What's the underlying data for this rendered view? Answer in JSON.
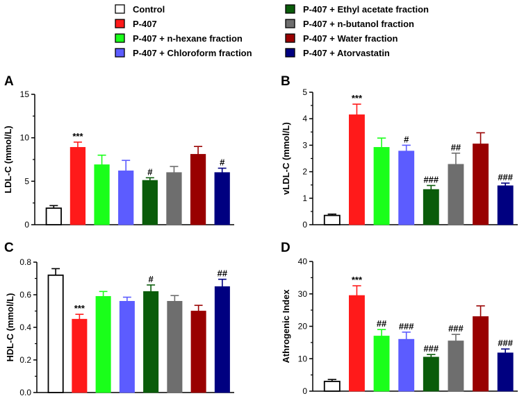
{
  "legend": {
    "items": [
      {
        "label": "Control",
        "color": "#ffffff"
      },
      {
        "label": "P-407",
        "color": "#ff1a1a"
      },
      {
        "label": "P-407 + n-hexane fraction",
        "color": "#1aff1a"
      },
      {
        "label": "P-407 + Chloroform fraction",
        "color": "#5c5cff"
      },
      {
        "label": "P-407 + Ethyl acetate fraction",
        "color": "#0a5c0a"
      },
      {
        "label": "P-407 + n-butanol fraction",
        "color": "#6e6e6e"
      },
      {
        "label": "P-407 + Water fraction",
        "color": "#990000"
      },
      {
        "label": "P-407 + Atorvastatin",
        "color": "#000080"
      }
    ]
  },
  "chart_data": [
    {
      "type": "bar",
      "panel_label": "A",
      "ylabel": "LDL-C (mmol/L)",
      "ylim": [
        0,
        15
      ],
      "yticks": [
        "0",
        "5",
        "10",
        "15"
      ],
      "categories": [
        "Control",
        "P-407",
        "P-407 + n-hexane fraction",
        "P-407 + Chloroform fraction",
        "P-407 + Ethyl acetate fraction",
        "P-407 + n-butanol fraction",
        "P-407 + Water fraction",
        "P-407 + Atorvastatin"
      ],
      "values": [
        1.9,
        8.9,
        6.9,
        6.2,
        5.1,
        6.0,
        8.1,
        6.0
      ],
      "errors": [
        0.3,
        0.6,
        1.1,
        1.2,
        0.3,
        0.7,
        0.9,
        0.5
      ],
      "significance": [
        "",
        "***",
        "",
        "",
        "#",
        "",
        "",
        "#"
      ]
    },
    {
      "type": "bar",
      "panel_label": "B",
      "ylabel": "vLDL-C (mmol/L)",
      "ylim": [
        0,
        5
      ],
      "yticks": [
        "0",
        "1",
        "2",
        "3",
        "4",
        "5"
      ],
      "categories": [
        "Control",
        "P-407",
        "P-407 + n-hexane fraction",
        "P-407 + Chloroform fraction",
        "P-407 + Ethyl acetate fraction",
        "P-407 + n-butanol fraction",
        "P-407 + Water fraction",
        "P-407 + Atorvastatin"
      ],
      "values": [
        0.35,
        4.15,
        2.92,
        2.78,
        1.33,
        2.28,
        3.05,
        1.47
      ],
      "errors": [
        0.05,
        0.4,
        0.35,
        0.22,
        0.15,
        0.42,
        0.42,
        0.1
      ],
      "significance": [
        "",
        "***",
        "",
        "#",
        "###",
        "##",
        "",
        "###"
      ]
    },
    {
      "type": "bar",
      "panel_label": "C",
      "ylabel": "HDL-C (mmol/L)",
      "ylim": [
        0,
        0.8
      ],
      "yticks": [
        "0.0",
        "0.2",
        "0.4",
        "0.6",
        "0.8"
      ],
      "categories": [
        "Control",
        "P-407",
        "P-407 + n-hexane fraction",
        "P-407 + Chloroform fraction",
        "P-407 + Ethyl acetate fraction",
        "P-407 + n-butanol fraction",
        "P-407 + Water fraction",
        "P-407 + Atorvastatin"
      ],
      "values": [
        0.72,
        0.45,
        0.59,
        0.56,
        0.62,
        0.56,
        0.5,
        0.65
      ],
      "errors": [
        0.04,
        0.03,
        0.03,
        0.025,
        0.04,
        0.035,
        0.035,
        0.045
      ],
      "significance": [
        "",
        "***",
        "",
        "",
        "#",
        "",
        "",
        "##"
      ]
    },
    {
      "type": "bar",
      "panel_label": "D",
      "ylabel": "Athrogenic Index",
      "ylim": [
        0,
        40
      ],
      "yticks": [
        "0",
        "10",
        "20",
        "30",
        "40"
      ],
      "categories": [
        "Control",
        "P-407",
        "P-407 + n-hexane fraction",
        "P-407 + Chloroform fraction",
        "P-407 + Ethyl acetate fraction",
        "P-407 + n-butanol fraction",
        "P-407 + Water fraction",
        "P-407 + Atorvastatin"
      ],
      "values": [
        3.0,
        29.5,
        17.0,
        16.0,
        10.5,
        15.5,
        23.0,
        11.8
      ],
      "errors": [
        0.6,
        3.0,
        2.0,
        2.2,
        0.8,
        2.0,
        3.3,
        1.2
      ],
      "significance": [
        "",
        "***",
        "##",
        "###",
        "###",
        "###",
        "",
        "###"
      ]
    }
  ]
}
